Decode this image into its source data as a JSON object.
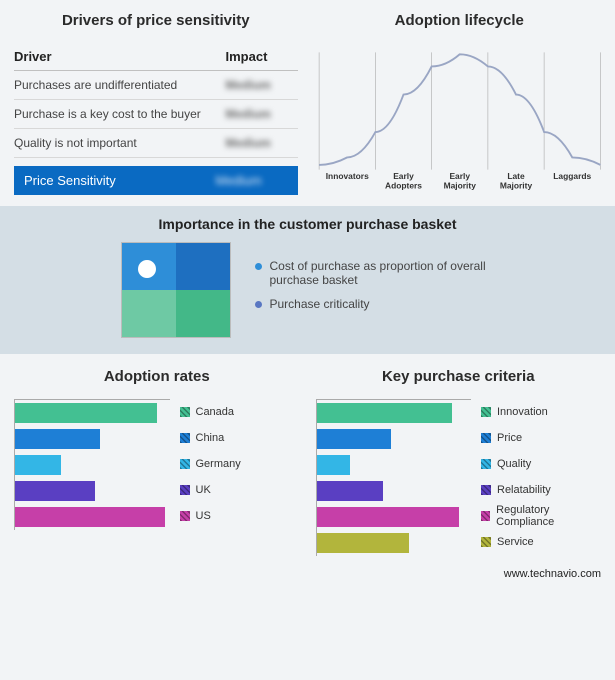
{
  "colors": {
    "bg": "#f2f4f6",
    "midband": "#d4dee5",
    "summary_bar": "#0a6ac2",
    "curve": "#9aa6c4"
  },
  "drivers": {
    "title": "Drivers of price sensitivity",
    "header_left": "Driver",
    "header_right": "Impact",
    "rows": [
      {
        "label": "Purchases are undifferentiated",
        "impact": "Medium"
      },
      {
        "label": "Purchase is a key cost to the buyer",
        "impact": "Medium"
      },
      {
        "label": "Quality is not important",
        "impact": "Medium"
      }
    ],
    "summary_label": "Price Sensitivity",
    "summary_impact": "Medium"
  },
  "lifecycle": {
    "title": "Adoption lifecycle",
    "categories": [
      "Innovators",
      "Early Adopters",
      "Early Majority",
      "Late Majority",
      "Laggards"
    ],
    "curve_points": [
      [
        0,
        130
      ],
      [
        30,
        122
      ],
      [
        60,
        95
      ],
      [
        90,
        55
      ],
      [
        120,
        25
      ],
      [
        150,
        12
      ],
      [
        180,
        25
      ],
      [
        210,
        55
      ],
      [
        240,
        95
      ],
      [
        270,
        122
      ],
      [
        300,
        130
      ]
    ],
    "axis_color": "#b0b0b0",
    "label_fontsize": 9
  },
  "importance": {
    "title": "Importance in the customer purchase basket",
    "quadrant_colors": [
      "#2e8ed8",
      "#1e6fc0",
      "#6ec9a4",
      "#43b888"
    ],
    "dot_position": {
      "left_pct": 15,
      "top_pct": 18
    },
    "legend": [
      {
        "text": "Cost of purchase as proportion of overall purchase basket",
        "color": "#2e8ed8"
      },
      {
        "text": "Purchase criticality",
        "color": "#5977c2"
      }
    ]
  },
  "adoption_rates": {
    "title": "Adoption rates",
    "max": 100,
    "items": [
      {
        "label": "Canada",
        "value": 92,
        "color": "#43c092"
      },
      {
        "label": "China",
        "value": 55,
        "color": "#1e7fd6"
      },
      {
        "label": "Germany",
        "value": 30,
        "color": "#33b6e6"
      },
      {
        "label": "UK",
        "value": 52,
        "color": "#5a3fc2"
      },
      {
        "label": "US",
        "value": 97,
        "color": "#c63fa8"
      }
    ]
  },
  "purchase_criteria": {
    "title": "Key purchase criteria",
    "max": 100,
    "items": [
      {
        "label": "Innovation",
        "value": 88,
        "color": "#43c092"
      },
      {
        "label": "Price",
        "value": 48,
        "color": "#1e7fd6"
      },
      {
        "label": "Quality",
        "value": 22,
        "color": "#33b6e6"
      },
      {
        "label": "Relatability",
        "value": 43,
        "color": "#5a3fc2"
      },
      {
        "label": "Regulatory Compliance",
        "value": 92,
        "color": "#c63fa8"
      },
      {
        "label": "Service",
        "value": 60,
        "color": "#b2b53c"
      }
    ]
  },
  "footer": "www.technavio.com"
}
